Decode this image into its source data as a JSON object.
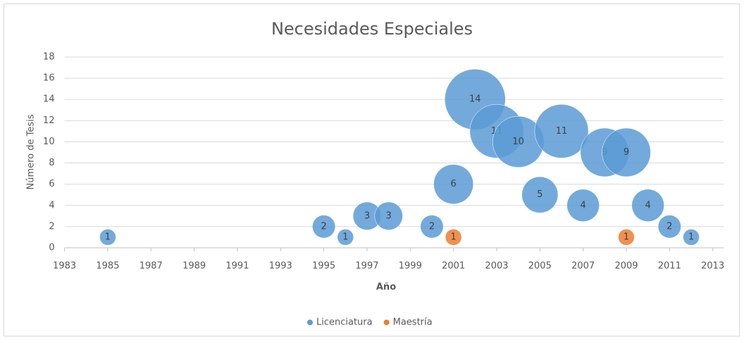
{
  "chart_data": {
    "type": "bubble",
    "title": "Necesidades Especiales",
    "x_label": "Año",
    "y_label": "Número de Tesis",
    "xlim": [
      1983,
      2013.5
    ],
    "ylim": [
      0,
      18
    ],
    "xticks": [
      1983,
      1985,
      1987,
      1989,
      1991,
      1993,
      1995,
      1997,
      1999,
      2001,
      2003,
      2005,
      2007,
      2009,
      2011,
      2013
    ],
    "yticks": [
      0,
      2,
      4,
      6,
      8,
      10,
      12,
      14,
      16,
      18
    ],
    "grid": true,
    "legend": "bottom",
    "series": [
      {
        "name": "Licenciatura",
        "color": "#5b9bd5",
        "x": [
          1985,
          1995,
          1996,
          1997,
          1998,
          2000,
          2001,
          2002,
          2003,
          2004,
          2005,
          2006,
          2007,
          2008,
          2009,
          2010,
          2011,
          2012
        ],
        "values": [
          1,
          2,
          1,
          3,
          3,
          2,
          6,
          14,
          11,
          10,
          5,
          11,
          4,
          9,
          9,
          4,
          2,
          1
        ],
        "sizes": [
          1,
          2,
          1,
          3,
          3,
          2,
          6,
          14,
          11,
          10,
          5,
          11,
          4,
          9,
          9,
          4,
          2,
          1
        ]
      },
      {
        "name": "Maestría",
        "color": "#ed7d31",
        "x": [
          2001,
          2009
        ],
        "values": [
          1,
          1
        ],
        "sizes": [
          1,
          1
        ]
      }
    ]
  }
}
